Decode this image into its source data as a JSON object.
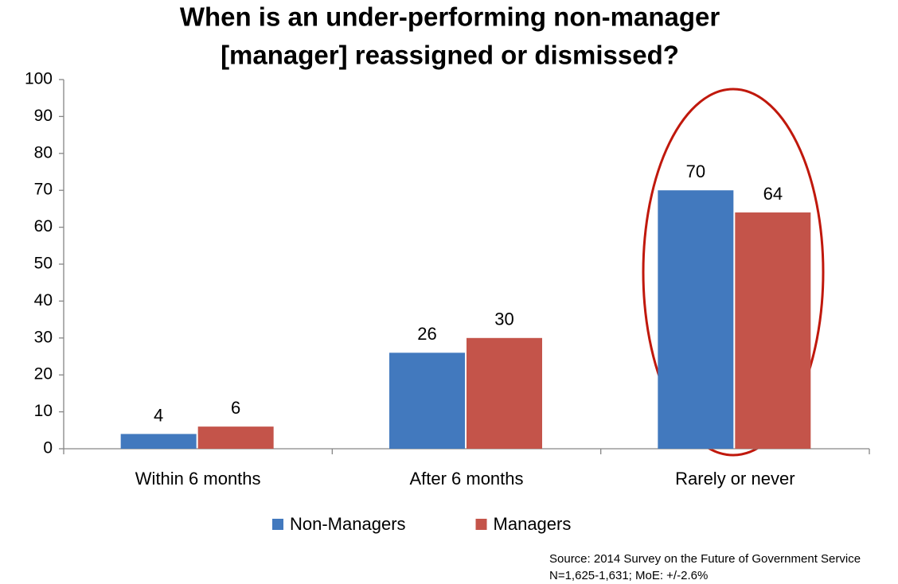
{
  "chart_data": {
    "type": "bar",
    "title": [
      "When is an under-performing non-manager",
      "[manager] reassigned or dismissed?"
    ],
    "categories": [
      "Within 6 months",
      "After 6 months",
      "Rarely or never"
    ],
    "series": [
      {
        "name": "Non-Managers",
        "color": "#4279be",
        "values": [
          4,
          26,
          70
        ]
      },
      {
        "name": "Managers",
        "color": "#c4544a",
        "values": [
          6,
          30,
          64
        ]
      }
    ],
    "ylim": [
      0,
      100
    ],
    "yticks": [
      0,
      10,
      20,
      30,
      40,
      50,
      60,
      70,
      80,
      90,
      100
    ],
    "grid": false,
    "legend": "bottom",
    "source": [
      "Source: 2014 Survey on the Future of Government Service",
      "N=1,625-1,631; MoE: +/-2.6%"
    ]
  }
}
